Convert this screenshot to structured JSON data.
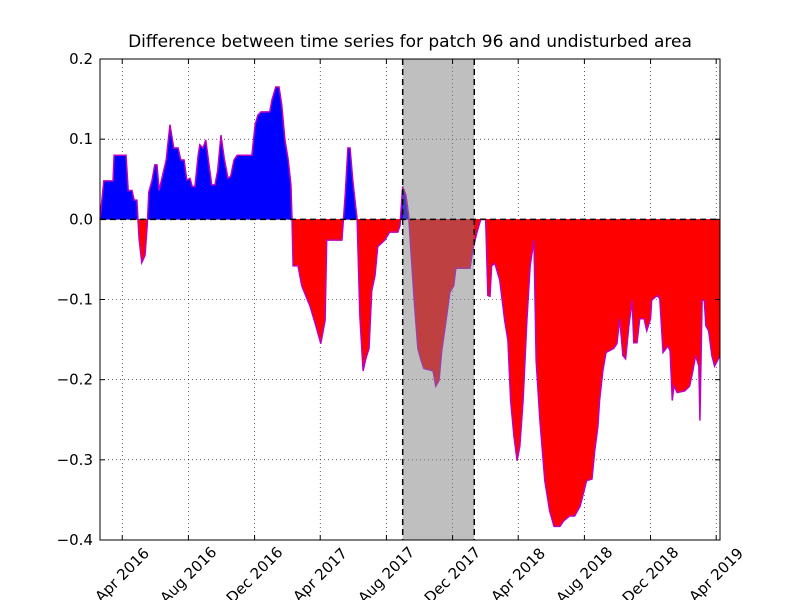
{
  "chart_data": {
    "type": "area",
    "title": "Difference between time series for patch 96 and undisturbed area",
    "x": [
      "2016-02-20",
      "2016-02-27",
      "2016-03-15",
      "2016-03-17",
      "2016-04-08",
      "2016-04-12",
      "2016-04-19",
      "2016-04-23",
      "2016-04-28",
      "2016-05-02",
      "2016-05-07",
      "2016-05-13",
      "2016-05-17",
      "2016-05-20",
      "2016-05-26",
      "2016-05-31",
      "2016-06-04",
      "2016-06-08",
      "2016-06-13",
      "2016-06-21",
      "2016-06-28",
      "2016-07-05",
      "2016-07-13",
      "2016-07-18",
      "2016-07-24",
      "2016-07-29",
      "2016-08-04",
      "2016-08-08",
      "2016-08-13",
      "2016-08-19",
      "2016-08-22",
      "2016-08-28",
      "2016-09-02",
      "2016-09-08",
      "2016-09-13",
      "2016-09-19",
      "2016-09-24",
      "2016-09-30",
      "2016-10-06",
      "2016-10-13",
      "2016-10-18",
      "2016-10-24",
      "2016-10-30",
      "2016-11-15",
      "2016-11-26",
      "2016-12-02",
      "2016-12-07",
      "2016-12-13",
      "2016-12-29",
      "2017-01-02",
      "2017-01-09",
      "2017-01-15",
      "2017-01-20",
      "2017-01-26",
      "2017-02-01",
      "2017-02-06",
      "2017-02-08",
      "2017-02-10",
      "2017-02-19",
      "2017-02-26",
      "2017-03-13",
      "2017-03-24",
      "2017-04-02",
      "2017-04-10",
      "2017-04-13",
      "2017-05-11",
      "2017-05-17",
      "2017-05-22",
      "2017-05-26",
      "2017-05-31",
      "2017-06-04",
      "2017-06-08",
      "2017-06-13",
      "2017-06-19",
      "2017-06-24",
      "2017-06-30",
      "2017-07-05",
      "2017-07-11",
      "2017-07-16",
      "2017-07-29",
      "2017-08-07",
      "2017-08-22",
      "2017-08-26",
      "2017-08-31",
      "2017-09-06",
      "2017-09-11",
      "2017-09-17",
      "2017-09-22",
      "2017-09-28",
      "2017-10-04",
      "2017-10-09",
      "2017-10-26",
      "2017-10-31",
      "2017-11-06",
      "2017-11-11",
      "2017-11-19",
      "2017-11-26",
      "2017-12-03",
      "2017-12-07",
      "2018-01-02",
      "2018-01-07",
      "2018-01-15",
      "2018-01-22",
      "2018-01-31",
      "2018-02-04",
      "2018-02-08",
      "2018-02-11",
      "2018-02-17",
      "2018-02-26",
      "2018-03-07",
      "2018-03-13",
      "2018-03-18",
      "2018-03-24",
      "2018-03-30",
      "2018-04-04",
      "2018-04-10",
      "2018-04-17",
      "2018-04-23",
      "2018-04-30",
      "2018-05-04",
      "2018-05-11",
      "2018-05-20",
      "2018-05-29",
      "2018-06-06",
      "2018-06-17",
      "2018-06-24",
      "2018-07-05",
      "2018-07-14",
      "2018-07-24",
      "2018-07-29",
      "2018-08-05",
      "2018-08-15",
      "2018-08-20",
      "2018-08-26",
      "2018-08-29",
      "2018-09-04",
      "2018-09-10",
      "2018-09-24",
      "2018-09-30",
      "2018-10-05",
      "2018-10-11",
      "2018-10-16",
      "2018-10-22",
      "2018-10-28",
      "2018-10-31",
      "2018-11-06",
      "2018-11-11",
      "2018-11-19",
      "2018-11-24",
      "2018-12-01",
      "2018-12-03",
      "2018-12-13",
      "2018-12-18",
      "2018-12-24",
      "2019-01-02",
      "2019-01-06",
      "2019-01-10",
      "2019-01-13",
      "2019-01-19",
      "2019-02-02",
      "2019-02-11",
      "2019-02-17",
      "2019-02-22",
      "2019-02-28",
      "2019-03-02",
      "2019-03-06",
      "2019-03-10",
      "2019-03-13",
      "2019-03-18",
      "2019-03-24",
      "2019-03-29",
      "2019-04-08"
    ],
    "values": [
      0,
      0.048,
      0.048,
      0.08,
      0.08,
      0.036,
      0.036,
      0.024,
      0.024,
      -0.024,
      -0.054,
      -0.045,
      -0.008,
      0.034,
      0.049,
      0.068,
      0.068,
      0.036,
      0.051,
      0.074,
      0.118,
      0.089,
      0.089,
      0.074,
      0.074,
      0.049,
      0.051,
      0.041,
      0.041,
      0.08,
      0.093,
      0.089,
      0.099,
      0.068,
      0.043,
      0.043,
      0.061,
      0.105,
      0.076,
      0.051,
      0.054,
      0.074,
      0.08,
      0.08,
      0.08,
      0.118,
      0.13,
      0.134,
      0.134,
      0.149,
      0.165,
      0.165,
      0.143,
      0.099,
      0.074,
      0.043,
      0,
      -0.058,
      -0.058,
      -0.083,
      -0.108,
      -0.133,
      -0.155,
      -0.126,
      -0.026,
      -0.026,
      0.03,
      0.089,
      0.089,
      0.049,
      0.024,
      0,
      -0.12,
      -0.189,
      -0.174,
      -0.161,
      -0.089,
      -0.07,
      -0.034,
      -0.026,
      -0.016,
      -0.016,
      -0.008,
      0.041,
      0.03,
      0.005,
      -0.058,
      -0.108,
      -0.161,
      -0.176,
      -0.186,
      -0.189,
      -0.208,
      -0.201,
      -0.164,
      -0.126,
      -0.091,
      -0.083,
      -0.061,
      -0.061,
      -0.039,
      -0.016,
      0,
      0,
      -0.095,
      -0.096,
      -0.058,
      -0.055,
      -0.076,
      -0.126,
      -0.151,
      -0.226,
      -0.27,
      -0.301,
      -0.283,
      -0.226,
      -0.126,
      -0.058,
      -0.026,
      -0.176,
      -0.251,
      -0.326,
      -0.364,
      -0.383,
      -0.383,
      -0.376,
      -0.37,
      -0.37,
      -0.358,
      -0.345,
      -0.326,
      -0.324,
      -0.289,
      -0.258,
      -0.226,
      -0.189,
      -0.166,
      -0.161,
      -0.155,
      -0.124,
      -0.17,
      -0.174,
      -0.133,
      -0.101,
      -0.154,
      -0.154,
      -0.124,
      -0.124,
      -0.139,
      -0.124,
      -0.101,
      -0.095,
      -0.099,
      -0.166,
      -0.158,
      -0.164,
      -0.226,
      -0.208,
      -0.216,
      -0.214,
      -0.208,
      -0.189,
      -0.17,
      -0.183,
      -0.251,
      -0.101,
      -0.101,
      -0.133,
      -0.139,
      -0.17,
      -0.183,
      -0.17
    ],
    "line_color": "#bf00bf",
    "above_color": "#0000ff",
    "below_color": "#ff0000",
    "xlim": [
      "2016-02-20",
      "2019-04-08"
    ],
    "xticks": [
      {
        "value": "2016-04-01",
        "label": "Apr 2016"
      },
      {
        "value": "2016-08-01",
        "label": "Aug 2016"
      },
      {
        "value": "2016-12-01",
        "label": "Dec 2016"
      },
      {
        "value": "2017-04-01",
        "label": "Apr 2017"
      },
      {
        "value": "2017-08-01",
        "label": "Aug 2017"
      },
      {
        "value": "2017-12-01",
        "label": "Dec 2017"
      },
      {
        "value": "2018-04-01",
        "label": "Apr 2018"
      },
      {
        "value": "2018-08-01",
        "label": "Aug 2018"
      },
      {
        "value": "2018-12-01",
        "label": "Dec 2018"
      },
      {
        "value": "2019-04-01",
        "label": "Apr 2019"
      }
    ],
    "ylim": [
      -0.4,
      0.2
    ],
    "yticks": [
      {
        "value": -0.4,
        "label": "−0.4"
      },
      {
        "value": -0.3,
        "label": "−0.3"
      },
      {
        "value": -0.2,
        "label": "−0.2"
      },
      {
        "value": -0.1,
        "label": "−0.1"
      },
      {
        "value": 0,
        "label": "0.0"
      },
      0.1,
      0.2
    ],
    "grid": true,
    "baseline": 0,
    "highlight_span": [
      "2017-08-31",
      "2018-01-10"
    ],
    "span_color": "#808080"
  }
}
